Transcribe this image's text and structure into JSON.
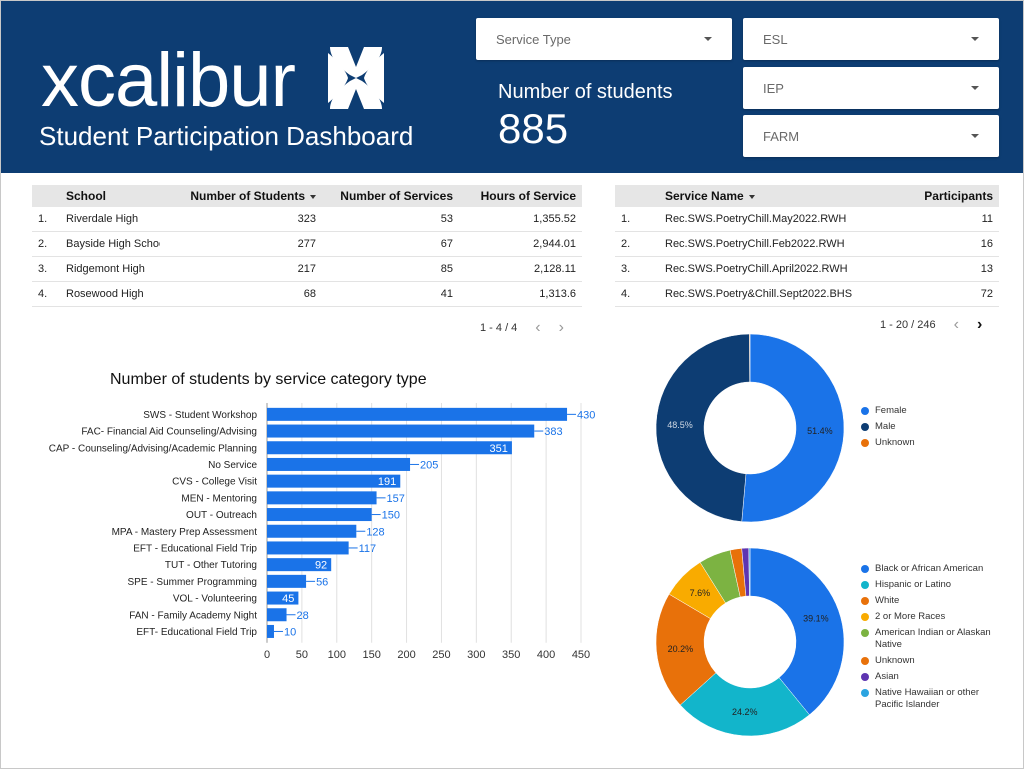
{
  "header": {
    "logo_text": "xcalibur",
    "subtitle": "Student Participation Dashboard",
    "metric_label": "Number of students",
    "metric_value": "885",
    "bg_color": "#0d3d73"
  },
  "filters": {
    "service_type": "Service Type",
    "esl": "ESL",
    "iep": "IEP",
    "farm": "FARM"
  },
  "schools_table": {
    "columns": [
      "School",
      "Number of Students",
      "Number of Services",
      "Hours of Service"
    ],
    "rows": [
      {
        "idx": "1.",
        "school": "Riverdale High",
        "students": "323",
        "services": "53",
        "hours": "1,355.52"
      },
      {
        "idx": "2.",
        "school": "Bayside High School",
        "students": "277",
        "services": "67",
        "hours": "2,944.01"
      },
      {
        "idx": "3.",
        "school": "Ridgemont High",
        "students": "217",
        "services": "85",
        "hours": "2,128.11"
      },
      {
        "idx": "4.",
        "school": "Rosewood High",
        "students": "68",
        "services": "41",
        "hours": "1,313.6"
      }
    ],
    "pager": "1 - 4 / 4"
  },
  "services_table": {
    "columns": [
      "Service Name",
      "Participants"
    ],
    "rows": [
      {
        "idx": "1.",
        "name": "Rec.SWS.PoetryChill.May2022.RWH",
        "participants": "11"
      },
      {
        "idx": "2.",
        "name": "Rec.SWS.PoetryChill.Feb2022.RWH",
        "participants": "16"
      },
      {
        "idx": "3.",
        "name": "Rec.SWS.PoetryChill.April2022.RWH",
        "participants": "13"
      },
      {
        "idx": "4.",
        "name": "Rec.SWS.Poetry&Chill.Sept2022.BHS",
        "participants": "72"
      }
    ],
    "pager": "1 - 20 / 246"
  },
  "icons": {
    "prev": "‹",
    "next": "›"
  },
  "chart_data": [
    {
      "type": "bar",
      "orientation": "horizontal",
      "title": "Number of students by service category type",
      "categories": [
        "SWS - Student Workshop",
        "FAC- Financial Aid Counseling/Advising",
        "CAP - Counseling/Advising/Academic Planning",
        "No Service",
        "CVS - College Visit",
        "MEN - Mentoring",
        "OUT - Outreach",
        "MPA - Mastery Prep Assessment",
        "EFT - Educational Field Trip",
        "TUT - Other Tutoring",
        "SPE - Summer Programming",
        "VOL - Volunteering",
        "FAN - Family Academy Night",
        "EFT- Educational Field Trip"
      ],
      "values": [
        430,
        383,
        351,
        205,
        191,
        157,
        150,
        128,
        117,
        92,
        56,
        45,
        28,
        10
      ],
      "xlim": [
        0,
        450
      ],
      "xticks": [
        0,
        50,
        100,
        150,
        200,
        250,
        300,
        350,
        400,
        450
      ],
      "grid": true,
      "bar_color": "#1a73e8"
    },
    {
      "type": "pie",
      "donut": true,
      "labels": [
        "Female",
        "Male",
        "Unknown"
      ],
      "values": [
        51.4,
        48.5,
        0.1
      ],
      "value_labels": [
        "51.4%",
        "48.5%",
        ""
      ],
      "colors": [
        "#1a73e8",
        "#0d3d73",
        "#e8710a"
      ],
      "legend": "right"
    },
    {
      "type": "pie",
      "donut": true,
      "labels": [
        "Black or African American",
        "Hispanic or Latino",
        "White",
        "2 or More Races",
        "American Indian or Alaskan Native",
        "Unknown",
        "Asian",
        "Native Hawaiian or other Pacific Islander"
      ],
      "values": [
        39.1,
        24.2,
        20.2,
        7.6,
        5.5,
        2.0,
        1.2,
        0.2
      ],
      "value_labels": [
        "39.1%",
        "24.2%",
        "20.2%",
        "7.6%",
        "",
        "",
        "",
        ""
      ],
      "colors": [
        "#1a73e8",
        "#12b5cb",
        "#e8710a",
        "#f9ab00",
        "#7cb342",
        "#e8710a",
        "#5e35b1",
        "#2ba4e0"
      ],
      "legend": "right"
    }
  ]
}
